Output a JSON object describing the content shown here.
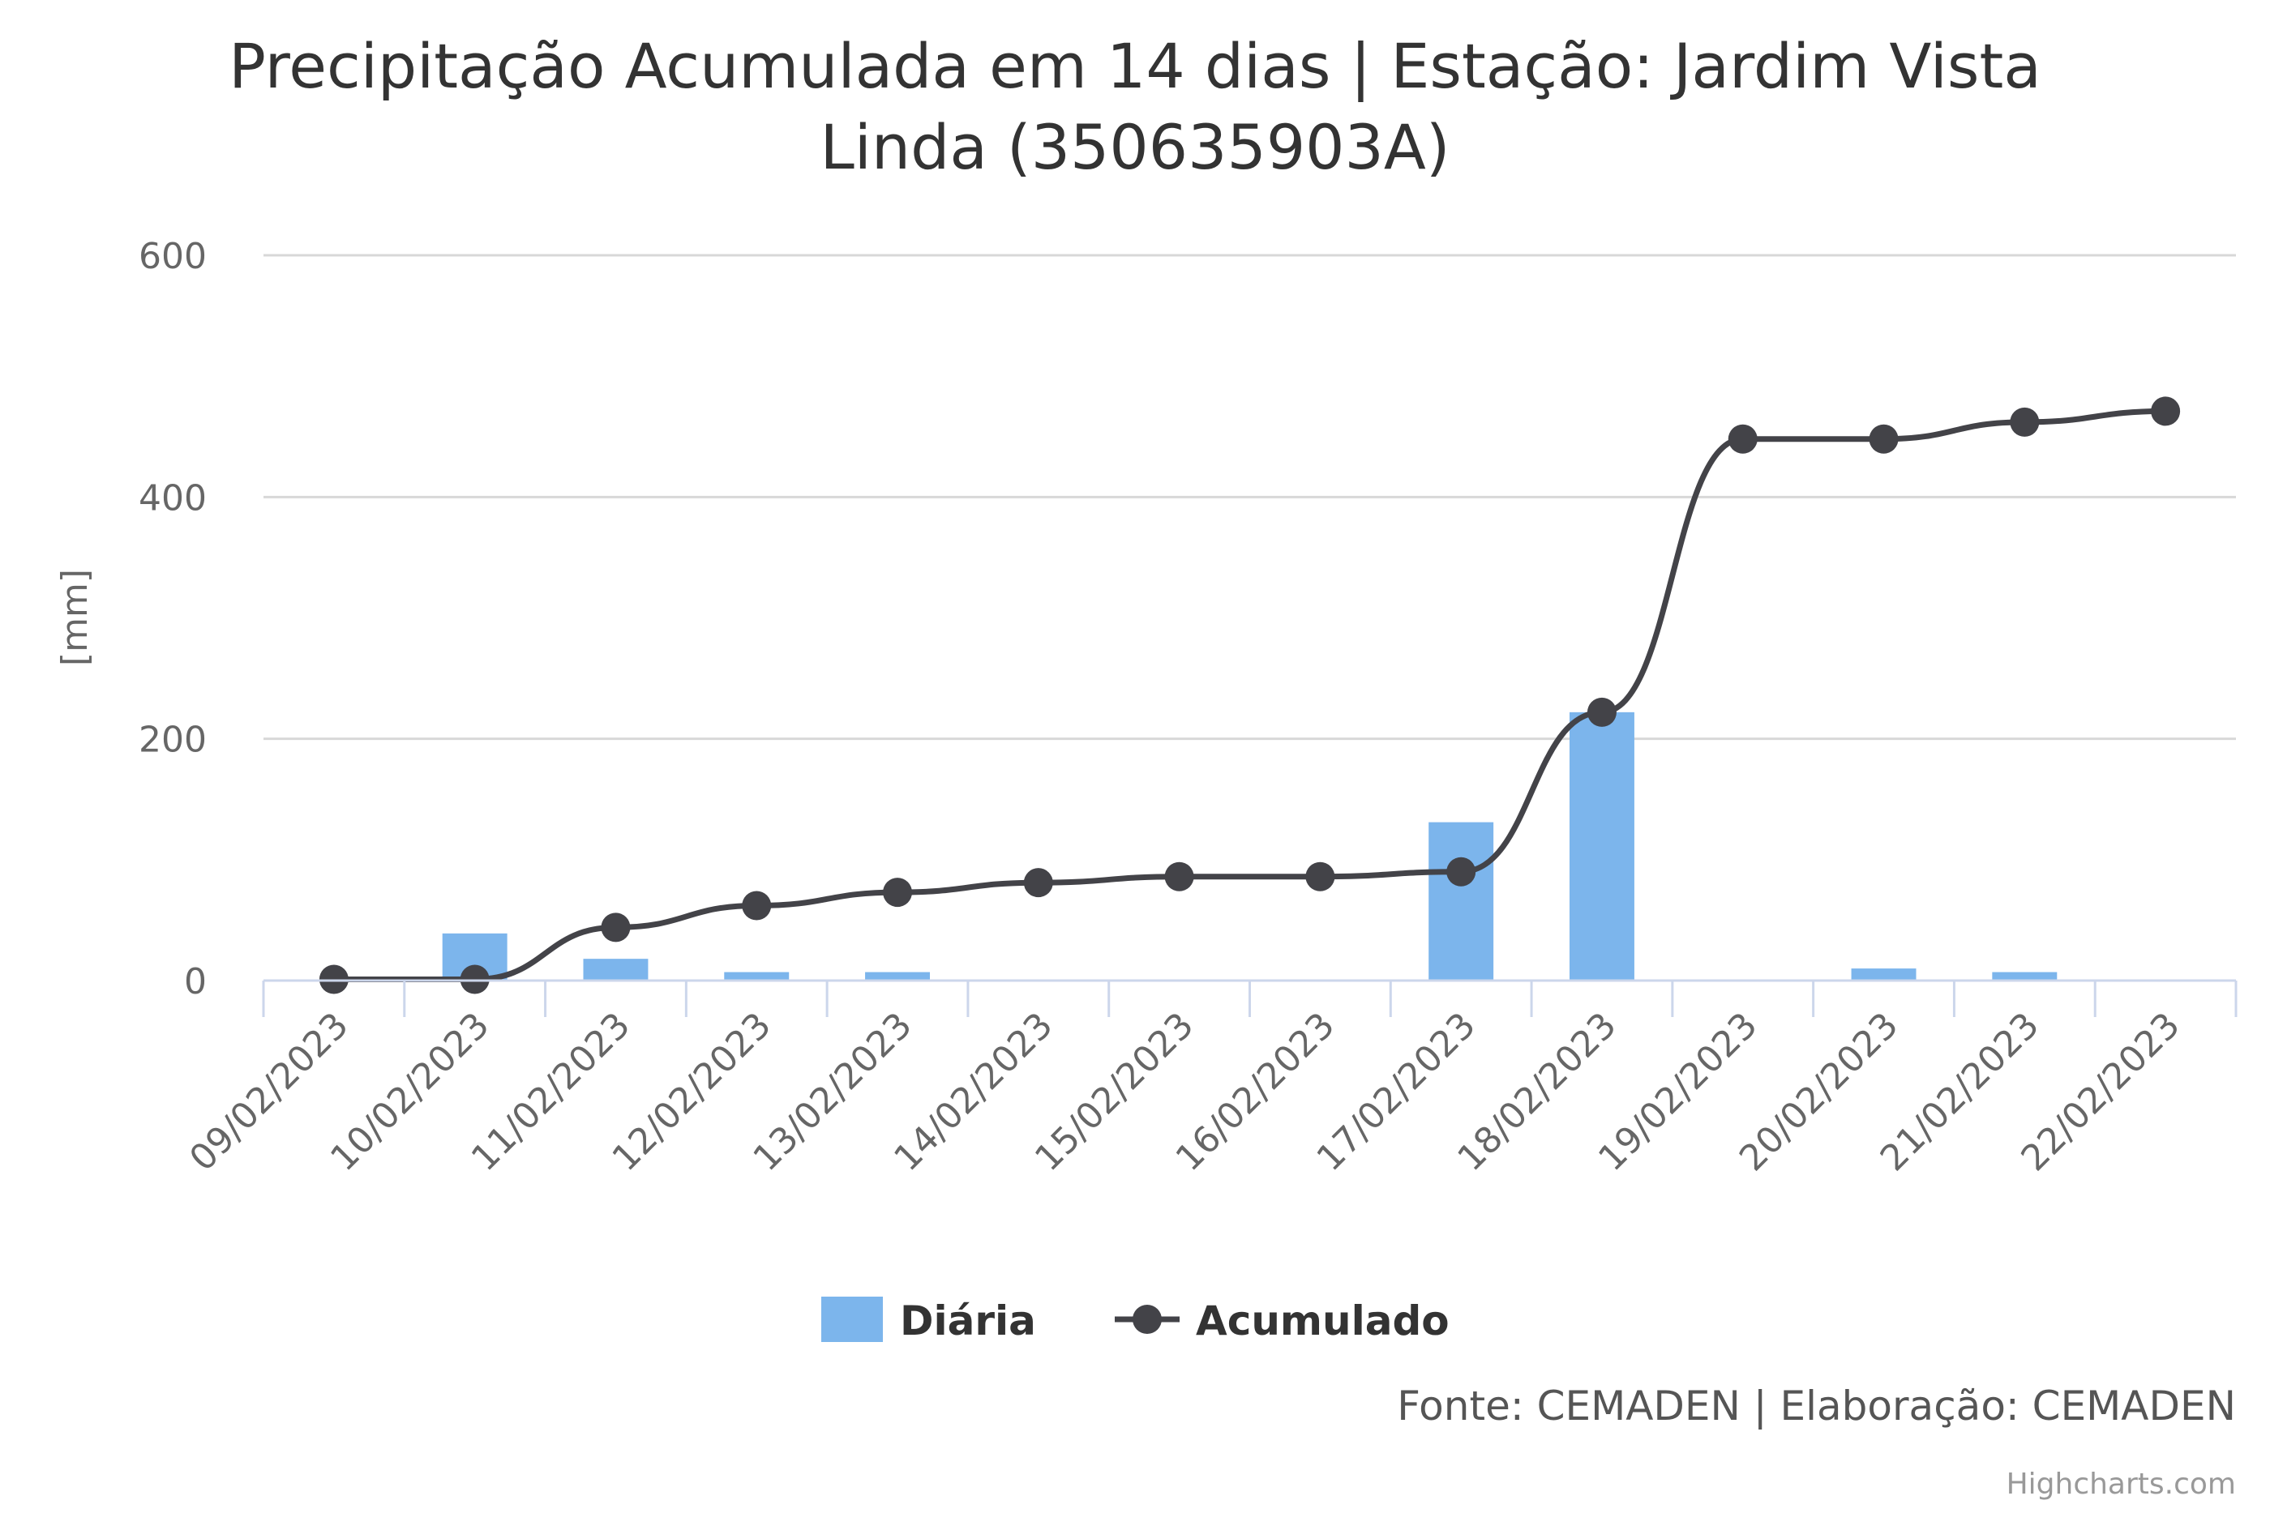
{
  "chart_data": {
    "type": "bar",
    "title": "Precipitação Acumulada em 14 dias | Estação: Jardim Vista Linda (350635903A)",
    "title_lines": [
      "Precipitação Acumulada em 14 dias | Estação: Jardim Vista",
      "Linda (350635903A)"
    ],
    "ylabel": "[mm]",
    "xlabel": "",
    "ylim": [
      0,
      600
    ],
    "yticks": [
      0,
      200,
      400,
      600
    ],
    "grid": true,
    "legend_placement": "bottom-center",
    "categories": [
      "09/02/2023",
      "10/02/2023",
      "11/02/2023",
      "12/02/2023",
      "13/02/2023",
      "14/02/2023",
      "15/02/2023",
      "16/02/2023",
      "17/02/2023",
      "18/02/2023",
      "19/02/2023",
      "20/02/2023",
      "21/02/2023",
      "22/02/2023"
    ],
    "series": [
      {
        "name": "Diária",
        "type": "bar",
        "color": "#7cb5ec",
        "values": [
          0,
          39,
          18,
          7,
          7,
          0,
          0,
          0,
          131,
          222,
          0,
          10,
          7,
          0
        ]
      },
      {
        "name": "Acumulado",
        "type": "line",
        "color": "#434348",
        "values": [
          1,
          1,
          44,
          62,
          73,
          81,
          86,
          86,
          90,
          222,
          448,
          448,
          462,
          471
        ]
      }
    ]
  },
  "source_text": "Fonte: CEMADEN | Elaboração: CEMADEN",
  "credits": "Highcharts.com"
}
